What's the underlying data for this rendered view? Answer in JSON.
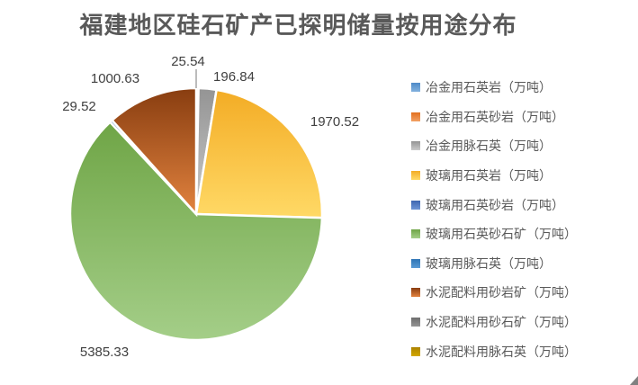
{
  "chart_data": {
    "type": "pie",
    "title": "福建地区硅石矿产已探明储量按用途分布",
    "legend_position": "right",
    "label_color": "#404040",
    "title_color": "#595959",
    "legend_text_color": "#595959",
    "series": [
      {
        "label": "冶金用石英岩（万吨）",
        "value": null,
        "color_top": "#4E8AC8",
        "color_bottom": "#82B1DE"
      },
      {
        "label": "冶金用石英砂岩（万吨）",
        "value": 25.54,
        "color_top": "#E2701F",
        "color_bottom": "#F2A064"
      },
      {
        "label": "冶金用脉石英（万吨）",
        "value": 196.84,
        "color_top": "#949494",
        "color_bottom": "#CACACA"
      },
      {
        "label": "玻璃用石英岩（万吨）",
        "value": 1970.52,
        "color_top": "#F3AC25",
        "color_bottom": "#FFD966"
      },
      {
        "label": "玻璃用石英砂岩（万吨）",
        "value": null,
        "color_top": "#3E66B0",
        "color_bottom": "#6E95D6"
      },
      {
        "label": "玻璃用石英砂石矿（万吨）",
        "value": 5385.33,
        "color_top": "#6FA546",
        "color_bottom": "#A4CE88"
      },
      {
        "label": "玻璃用脉石英（万吨）",
        "value": 29.52,
        "color_top": "#2E74B5",
        "color_bottom": "#5B9BD5"
      },
      {
        "label": "水泥配料用砂岩矿（万吨）",
        "value": 1000.63,
        "color_top": "#883D10",
        "color_bottom": "#E2833F"
      },
      {
        "label": "水泥配料用砂石矿（万吨）",
        "value": null,
        "color_top": "#6E6E6E",
        "color_bottom": "#939393"
      },
      {
        "label": "水泥配料用脉石英（万吨）",
        "value": null,
        "color_top": "#AC8200",
        "color_bottom": "#D3A800"
      }
    ]
  }
}
